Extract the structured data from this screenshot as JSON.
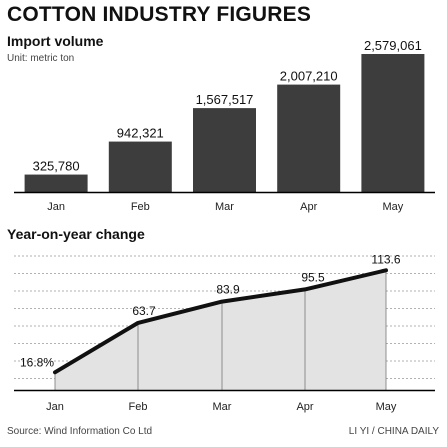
{
  "header": {
    "title": "COTTON INDUSTRY FIGURES"
  },
  "source": "Source:  Wind Information Co Ltd",
  "credit": "LI YI / CHINA DAILY",
  "colors": {
    "bar": "#3d3d3d",
    "line": "#111111",
    "area": "#e3e3e3",
    "axis": "#000000",
    "grid": "#999999"
  },
  "chart_data": [
    {
      "type": "bar",
      "title": "Import volume",
      "subtitle": "Unit: metric ton",
      "categories": [
        "Jan",
        "Feb",
        "Mar",
        "Apr",
        "May"
      ],
      "values": [
        325780,
        942321,
        1567517,
        2007210,
        2579061
      ],
      "value_labels": [
        "325,780",
        "942,321",
        "1,567,517",
        "2,007,210",
        "2,579,061"
      ],
      "ylim": [
        0,
        2579061
      ],
      "grid": false
    },
    {
      "type": "area",
      "title": "Year-on-year change",
      "categories": [
        "Jan",
        "Feb",
        "Mar",
        "Apr",
        "May"
      ],
      "values": [
        16.8,
        63.7,
        83.9,
        95.5,
        113.6
      ],
      "value_labels": [
        "16.8%",
        "63.7",
        "83.9",
        "95.5",
        "113.6"
      ],
      "ylim": [
        0,
        130
      ],
      "grid": true
    }
  ]
}
